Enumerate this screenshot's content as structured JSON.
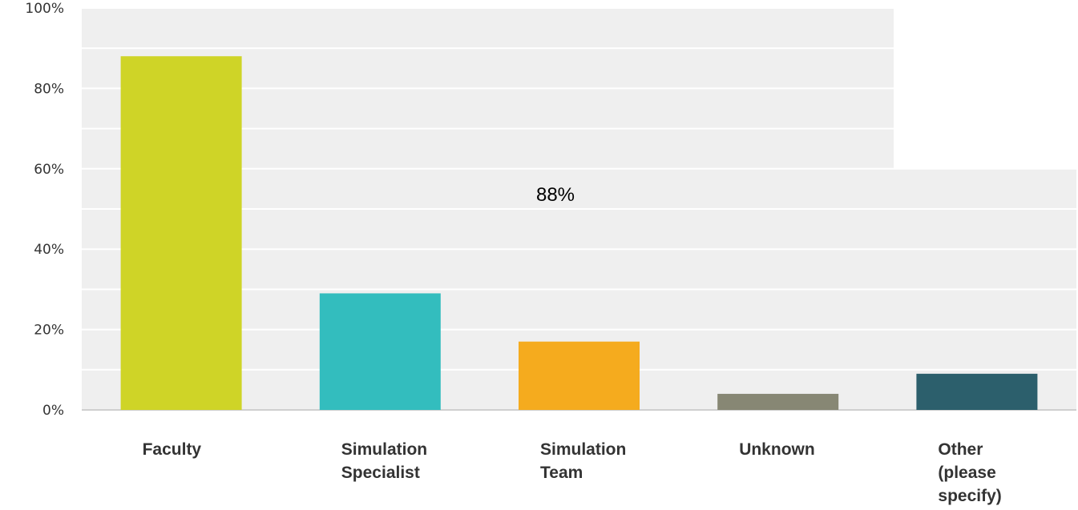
{
  "chart_data": {
    "type": "bar",
    "categories": [
      [
        "Faculty"
      ],
      [
        "Simulation",
        "Specialist"
      ],
      [
        "Simulation",
        "Team"
      ],
      [
        "Unknown"
      ],
      [
        "Other",
        "(please",
        "specify)"
      ]
    ],
    "values": [
      88,
      29,
      17,
      4,
      9
    ],
    "colors": [
      "#cfd427",
      "#33bdbe",
      "#f5ab1e",
      "#878774",
      "#2c5f6c"
    ],
    "ylim": [
      0,
      100
    ],
    "yticks": [
      "0%",
      "20%",
      "40%",
      "60%",
      "80%",
      "100%"
    ],
    "grid": true,
    "annotation": "88%"
  }
}
